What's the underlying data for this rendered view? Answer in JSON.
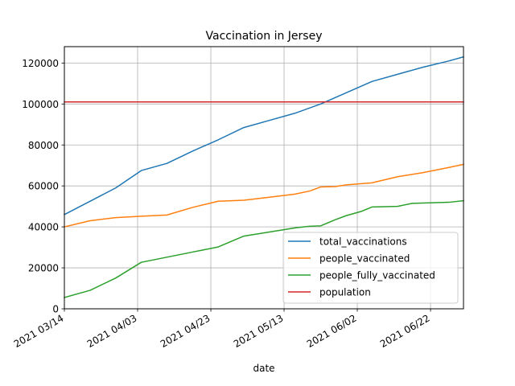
{
  "chart_data": {
    "type": "line",
    "title": "Vaccination in Jersey",
    "xlabel": "date",
    "ylabel": "",
    "x_type": "date",
    "xlim": [
      "2021-03-14",
      "2021-07-01"
    ],
    "ylim": [
      0,
      128000
    ],
    "grid": true,
    "legend_position": "lower right",
    "x_ticks": [
      {
        "date": "2021-03-14",
        "label": "2021 03/14"
      },
      {
        "date": "2021-04-03",
        "label": "2021 04/03"
      },
      {
        "date": "2021-04-23",
        "label": "2021 04/23"
      },
      {
        "date": "2021-05-13",
        "label": "2021 05/13"
      },
      {
        "date": "2021-06-02",
        "label": "2021 06/02"
      },
      {
        "date": "2021-06-22",
        "label": "2021 06/22"
      }
    ],
    "y_ticks": [
      {
        "value": 0,
        "label": "0"
      },
      {
        "value": 20000,
        "label": "20000"
      },
      {
        "value": 40000,
        "label": "40000"
      },
      {
        "value": 60000,
        "label": "60000"
      },
      {
        "value": 80000,
        "label": "80000"
      },
      {
        "value": 100000,
        "label": "100000"
      },
      {
        "value": 120000,
        "label": "120000"
      }
    ],
    "series": [
      {
        "name": "total_vaccinations",
        "color": "#1f77b4",
        "points": [
          [
            "2021-03-14",
            46000
          ],
          [
            "2021-03-21",
            52500
          ],
          [
            "2021-03-28",
            59000
          ],
          [
            "2021-04-04",
            67500
          ],
          [
            "2021-04-11",
            71000
          ],
          [
            "2021-04-18",
            77000
          ],
          [
            "2021-04-25",
            82500
          ],
          [
            "2021-05-02",
            88500
          ],
          [
            "2021-05-09",
            92000
          ],
          [
            "2021-05-16",
            95500
          ],
          [
            "2021-05-23",
            100000
          ],
          [
            "2021-05-30",
            105500
          ],
          [
            "2021-06-06",
            111000
          ],
          [
            "2021-06-13",
            114500
          ],
          [
            "2021-06-20",
            118000
          ],
          [
            "2021-06-27",
            121000
          ],
          [
            "2021-07-01",
            123000
          ]
        ]
      },
      {
        "name": "people_vaccinated",
        "color": "#ff7f0e",
        "points": [
          [
            "2021-03-14",
            40000
          ],
          [
            "2021-03-21",
            43000
          ],
          [
            "2021-03-28",
            44500
          ],
          [
            "2021-04-04",
            45200
          ],
          [
            "2021-04-11",
            45800
          ],
          [
            "2021-04-18",
            49500
          ],
          [
            "2021-04-25",
            52500
          ],
          [
            "2021-05-02",
            53000
          ],
          [
            "2021-05-09",
            54500
          ],
          [
            "2021-05-16",
            56000
          ],
          [
            "2021-05-20",
            57500
          ],
          [
            "2021-05-23",
            59500
          ],
          [
            "2021-05-27",
            59700
          ],
          [
            "2021-05-30",
            60500
          ],
          [
            "2021-06-06",
            61500
          ],
          [
            "2021-06-13",
            64500
          ],
          [
            "2021-06-20",
            66500
          ],
          [
            "2021-06-27",
            69000
          ],
          [
            "2021-07-01",
            70500
          ]
        ]
      },
      {
        "name": "people_fully_vaccinated",
        "color": "#2ca02c",
        "points": [
          [
            "2021-03-14",
            5500
          ],
          [
            "2021-03-21",
            9000
          ],
          [
            "2021-03-28",
            15000
          ],
          [
            "2021-04-04",
            22700
          ],
          [
            "2021-04-11",
            25200
          ],
          [
            "2021-04-18",
            27700
          ],
          [
            "2021-04-25",
            30200
          ],
          [
            "2021-05-02",
            35500
          ],
          [
            "2021-05-09",
            37500
          ],
          [
            "2021-05-16",
            39500
          ],
          [
            "2021-05-20",
            40300
          ],
          [
            "2021-05-23",
            40500
          ],
          [
            "2021-05-27",
            43500
          ],
          [
            "2021-05-30",
            45500
          ],
          [
            "2021-06-03",
            47500
          ],
          [
            "2021-06-06",
            49700
          ],
          [
            "2021-06-13",
            50000
          ],
          [
            "2021-06-17",
            51500
          ],
          [
            "2021-06-27",
            52000
          ],
          [
            "2021-07-01",
            52800
          ]
        ]
      },
      {
        "name": "population",
        "color": "#d62728",
        "points": [
          [
            "2021-03-14",
            101000
          ],
          [
            "2021-07-01",
            101000
          ]
        ]
      }
    ]
  }
}
